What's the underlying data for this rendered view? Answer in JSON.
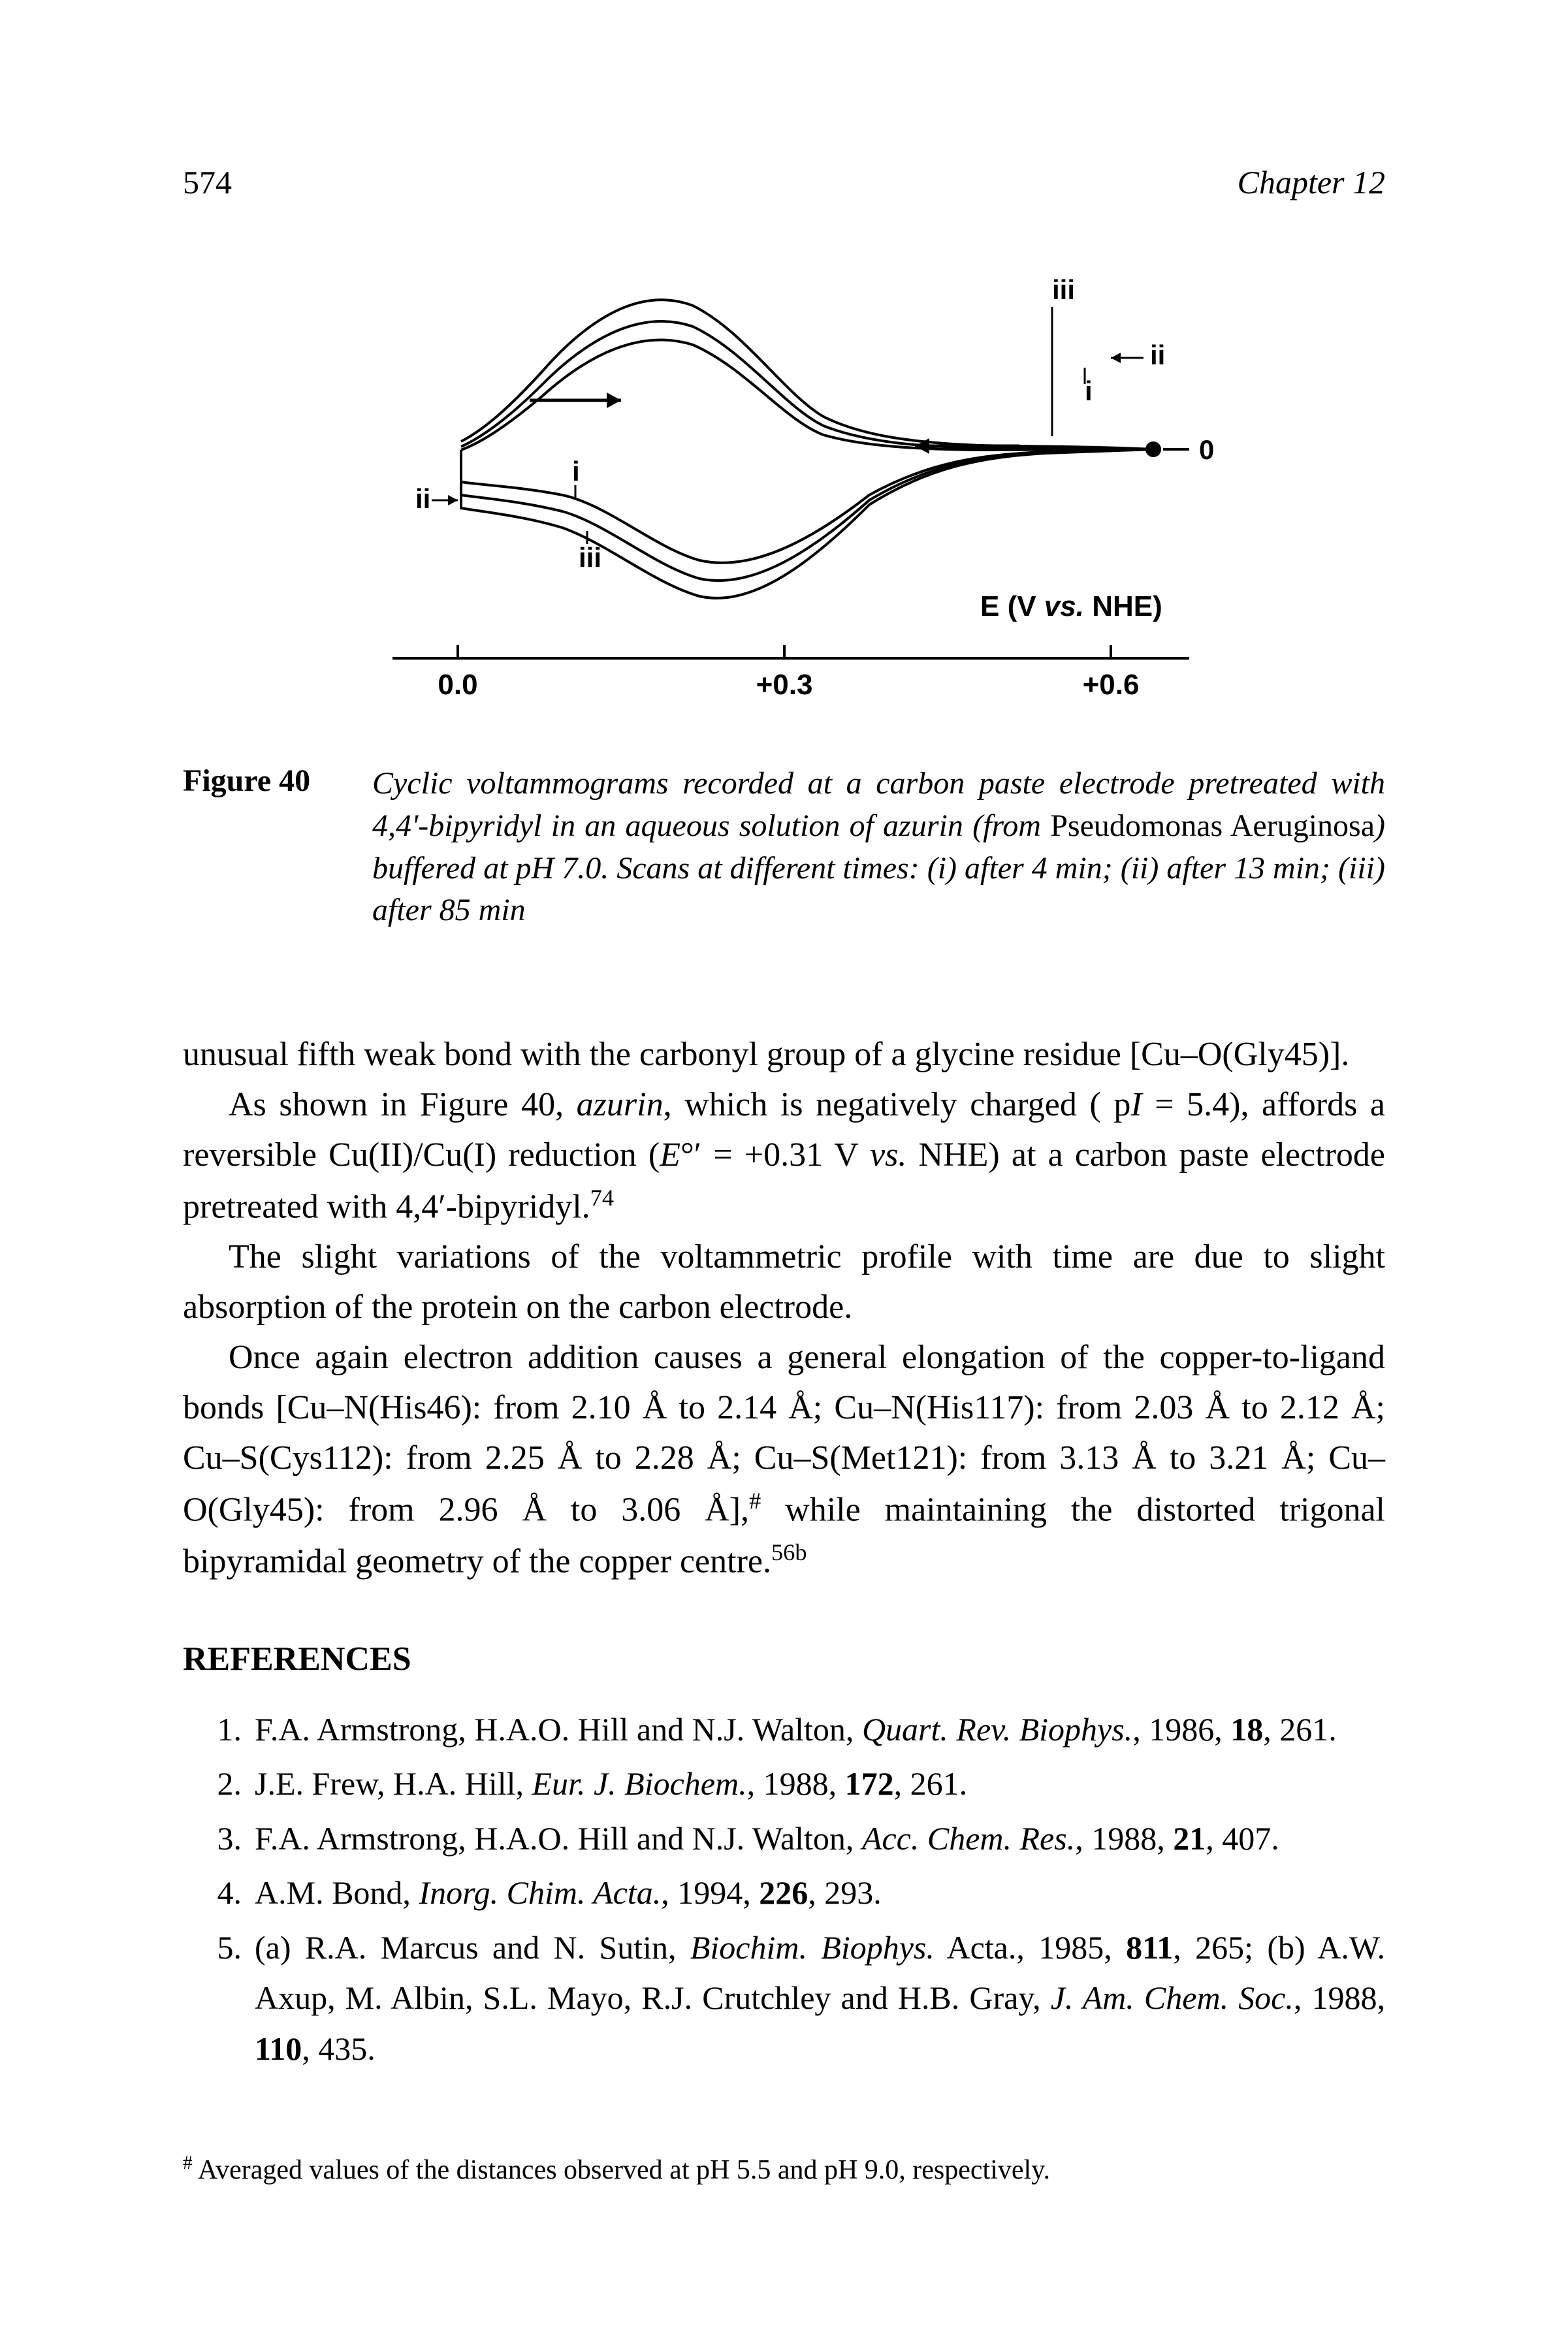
{
  "page_number": "574",
  "chapter_label": "Chapter 12",
  "figure": {
    "label": "Figure 40",
    "caption_html": "Cyclic voltammograms recorded at a carbon paste electrode pretreated with 4,4'-bipyridyl in an aqueous solution of azurin (from <span class=\"roman\">Pseudomonas Aeruginosa</span>) buffered at pH 7.0. Scans at different times: (i) after 4 min; (ii) after 13 min; (iii) after 85 min",
    "axis_label": "E (V vs. NHE)",
    "ticks": [
      "0.0",
      "+0.3",
      "+0.6"
    ],
    "trace_labels_top": [
      "i",
      "ii",
      "iii"
    ],
    "trace_labels_bottom": [
      "i",
      "ii",
      "iii"
    ],
    "zero_label": "0",
    "stroke_color": "#000000",
    "stroke_width": 4,
    "font_size_labels": 42,
    "font_size_ticks": 44,
    "font_weight_labels": "bold"
  },
  "paragraphs": [
    "unusual fifth weak bond with the carbonyl group of a glycine residue [Cu–O(Gly45)].",
    "As shown in Figure 40, <span class=\"italic\">azurin</span>, which is negatively charged ( p<i>I</i> = 5.4), affords a reversible Cu(II)/Cu(I) reduction (<i>E</i>°′ = +0.31 V <i>vs.</i> NHE) at a carbon paste electrode pretreated with 4,4′-bipyridyl.<sup>74</sup>",
    "The slight variations of the voltammetric profile with time are due to slight absorption of the protein on the carbon electrode.",
    "Once again electron addition causes a general elongation of the copper-to-ligand bonds [Cu–N(His46): from 2.10 Å to 2.14 Å; Cu–N(His117): from 2.03 Å to 2.12 Å; Cu–S(Cys112): from 2.25 Å to 2.28 Å; Cu–S(Met121): from 3.13 Å to 3.21 Å; Cu–O(Gly45): from 2.96 Å to 3.06 Å],<sup>#</sup> while maintaining the distorted trigonal bipyramidal geometry of the copper centre.<sup>56b</sup>"
  ],
  "references_heading": "REFERENCES",
  "references": [
    {
      "n": "1.",
      "html": "F.A. Armstrong, H.A.O. Hill and N.J. Walton, <span class=\"italic\">Quart. Rev. Biophys.</span>, 1986, <span class=\"bold\">18</span>, 261."
    },
    {
      "n": "2.",
      "html": "J.E. Frew, H.A. Hill, <span class=\"italic\">Eur. J. Biochem.</span>, 1988, <span class=\"bold\">172</span>, 261."
    },
    {
      "n": "3.",
      "html": "F.A. Armstrong, H.A.O. Hill and N.J. Walton, <span class=\"italic\">Acc. Chem. Res.</span>, 1988, <span class=\"bold\">21</span>, 407."
    },
    {
      "n": "4.",
      "html": "A.M. Bond, <span class=\"italic\">Inorg. Chim. Acta.</span>, 1994, <span class=\"bold\">226</span>, 293."
    },
    {
      "n": "5.",
      "html": "(a) R.A. Marcus and N. Sutin, <span class=\"italic\">Biochim. Biophys.</span> Acta., 1985, <span class=\"bold\">811</span>, 265; (b) A.W. Axup, M. Albin, S.L. Mayo, R.J. Crutchley and H.B. Gray, <span class=\"italic\">J. Am. Chem. Soc.</span>, 1988, <span class=\"bold\">110</span>, 435."
    }
  ],
  "footnote": "<sup>#</sup> Averaged values of the distances observed at pH 5.5 and pH 9.0, respectively."
}
